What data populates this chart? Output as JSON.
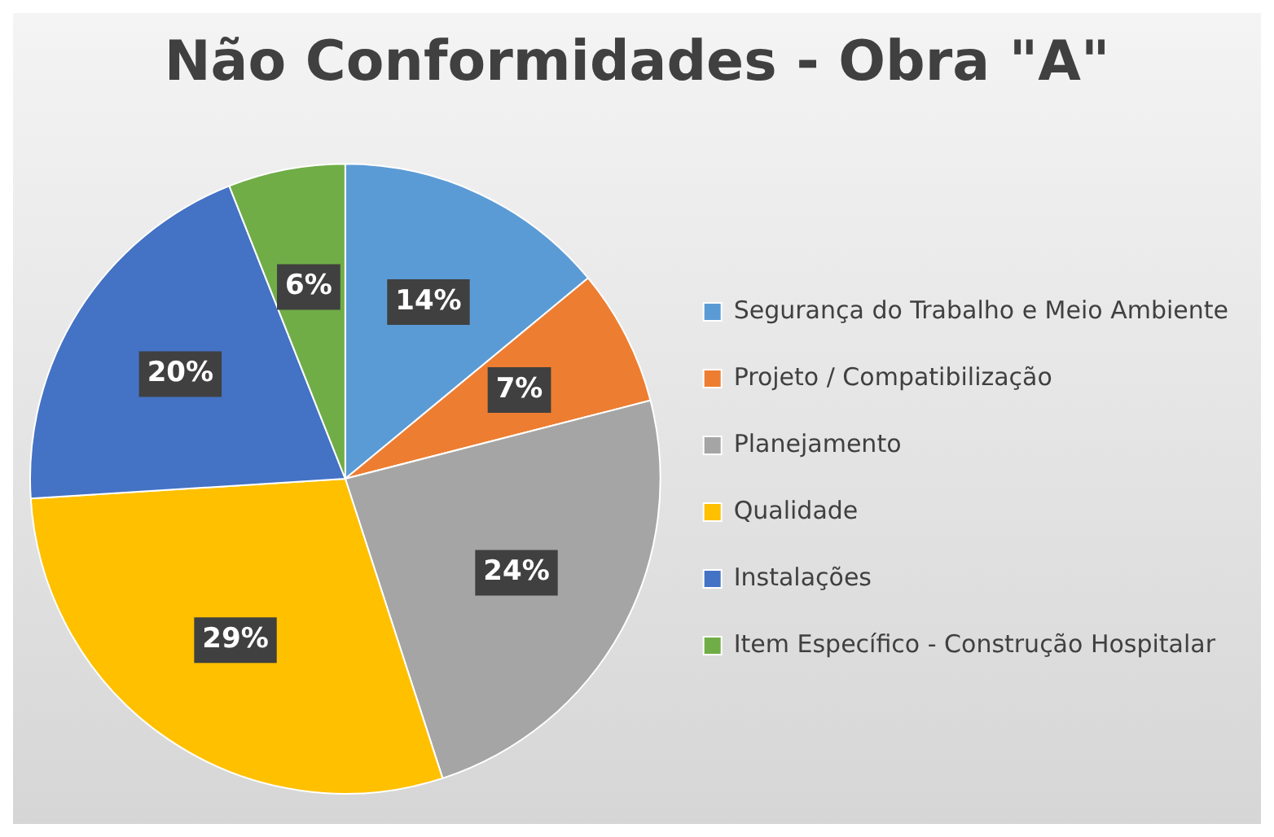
{
  "chart_data": {
    "type": "pie",
    "title": "Não Conformidades - Obra \"A\"",
    "categories": [
      "Segurança do Trabalho e Meio Ambiente",
      "Projeto / Compatibilização",
      "Planejamento",
      "Qualidade",
      "Instalações",
      "Item Específico - Construção Hospitalar"
    ],
    "values": [
      14,
      7,
      24,
      29,
      20,
      6
    ],
    "colors": [
      "#5b9bd5",
      "#ed7d31",
      "#a5a5a5",
      "#ffc000",
      "#4472c4",
      "#70ad47"
    ],
    "value_labels": [
      "14%",
      "7%",
      "24%",
      "29%",
      "20%",
      "6%"
    ],
    "legend": "right"
  }
}
